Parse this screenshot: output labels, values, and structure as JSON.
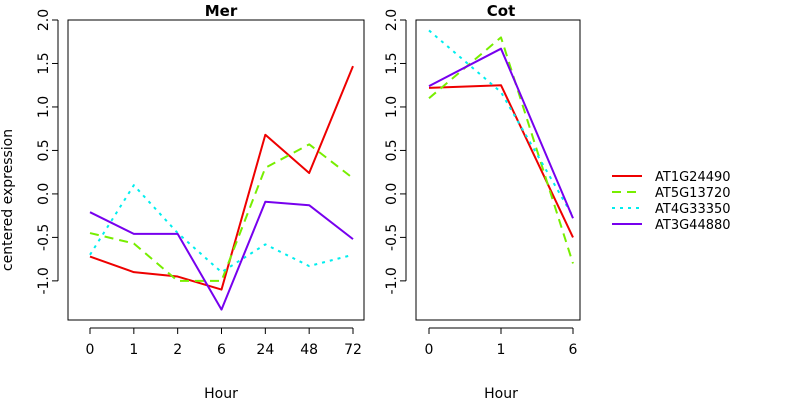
{
  "chart_data": [
    {
      "type": "line",
      "title": "Mer",
      "xlabel": "Hour",
      "ylabel": "centered expression",
      "categories": [
        "0",
        "1",
        "2",
        "6",
        "24",
        "48",
        "72"
      ],
      "ylim": [
        -1.45,
        2.0
      ],
      "yticks": [
        "-1.0",
        "-0.5",
        "0.0",
        "0.5",
        "1.0",
        "1.5",
        "2.0"
      ],
      "series": [
        {
          "name": "AT1G24490",
          "color": "#ee0000",
          "dash": "solid",
          "values": [
            -0.72,
            -0.9,
            -0.95,
            -1.1,
            0.68,
            0.24,
            1.47
          ]
        },
        {
          "name": "AT5G13720",
          "color": "#77ee00",
          "dash": "dashed",
          "values": [
            -0.45,
            -0.57,
            -1.0,
            -1.0,
            0.3,
            0.57,
            0.18
          ]
        },
        {
          "name": "AT4G33350",
          "color": "#00eeee",
          "dash": "dotted",
          "values": [
            -0.7,
            0.1,
            -0.45,
            -0.9,
            -0.58,
            -0.83,
            -0.7
          ]
        },
        {
          "name": "AT3G44880",
          "color": "#7700ee",
          "dash": "solid",
          "values": [
            -0.21,
            -0.46,
            -0.46,
            -1.33,
            -0.09,
            -0.13,
            -0.52
          ]
        }
      ]
    },
    {
      "type": "line",
      "title": "Cot",
      "xlabel": "Hour",
      "ylabel": "",
      "categories": [
        "0",
        "1",
        "6"
      ],
      "ylim": [
        -1.45,
        2.0
      ],
      "yticks": [
        "-1.0",
        "-0.5",
        "0.0",
        "0.5",
        "1.0",
        "1.5",
        "2.0"
      ],
      "series": [
        {
          "name": "AT1G24490",
          "color": "#ee0000",
          "dash": "solid",
          "values": [
            1.22,
            1.25,
            -0.5
          ]
        },
        {
          "name": "AT5G13720",
          "color": "#77ee00",
          "dash": "dashed",
          "values": [
            1.1,
            1.8,
            -0.8
          ]
        },
        {
          "name": "AT4G33350",
          "color": "#00eeee",
          "dash": "dotted",
          "values": [
            1.88,
            1.17,
            -0.26
          ]
        },
        {
          "name": "AT3G44880",
          "color": "#7700ee",
          "dash": "solid",
          "values": [
            1.24,
            1.67,
            -0.28
          ]
        }
      ]
    }
  ],
  "legend": {
    "position": "right",
    "entries": [
      {
        "label": "AT1G24490",
        "color": "#ee0000",
        "dash": "solid"
      },
      {
        "label": "AT5G13720",
        "color": "#77ee00",
        "dash": "dashed"
      },
      {
        "label": "AT4G33350",
        "color": "#00eeee",
        "dash": "dotted"
      },
      {
        "label": "AT3G44880",
        "color": "#7700ee",
        "dash": "solid"
      }
    ]
  }
}
